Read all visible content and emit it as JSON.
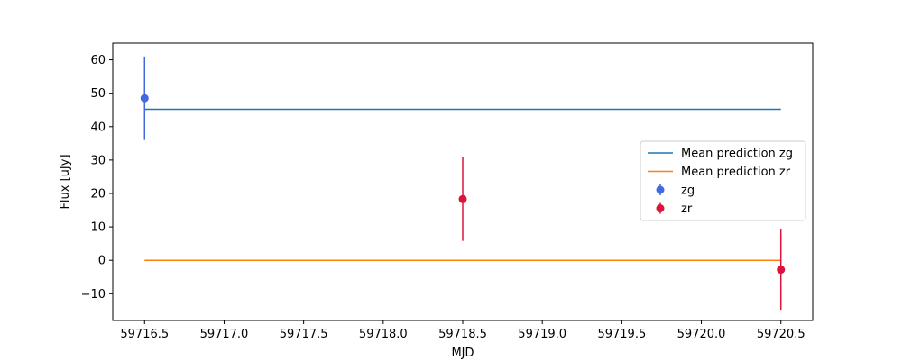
{
  "chart_data": {
    "type": "scatter",
    "title": "",
    "xlabel": "MJD",
    "ylabel": "Flux [uJy]",
    "xlim": [
      59716.3,
      59720.7
    ],
    "ylim": [
      -18,
      65
    ],
    "grid": false,
    "legend_placement": "center-right",
    "x_ticks": [
      59716.5,
      59717.0,
      59717.5,
      59718.0,
      59718.5,
      59719.0,
      59719.5,
      59720.0,
      59720.5
    ],
    "x_tick_labels": [
      "59716.5",
      "59717.0",
      "59717.5",
      "59718.0",
      "59718.5",
      "59719.0",
      "59719.5",
      "59720.0",
      "59720.5"
    ],
    "y_ticks": [
      -10,
      0,
      10,
      20,
      30,
      40,
      50,
      60
    ],
    "y_tick_labels": [
      "−10",
      "0",
      "10",
      "20",
      "30",
      "40",
      "50",
      "60"
    ],
    "lines": [
      {
        "name": "Mean prediction zg",
        "color": "#1f77b4",
        "x": [
          59716.5,
          59720.5
        ],
        "y": [
          45.2,
          45.2
        ]
      },
      {
        "name": "Mean prediction zr",
        "color": "#ff7f0e",
        "x": [
          59716.5,
          59720.5
        ],
        "y": [
          0.0,
          0.0
        ]
      }
    ],
    "series": [
      {
        "name": "zg",
        "color": "#4169e1",
        "x": [
          59716.5
        ],
        "y": [
          48.5
        ],
        "yerr": [
          12.5
        ]
      },
      {
        "name": "zr",
        "color": "#dc143c",
        "x": [
          59718.5,
          59720.5
        ],
        "y": [
          18.3,
          -2.8
        ],
        "yerr": [
          12.5,
          12.0
        ]
      }
    ]
  }
}
